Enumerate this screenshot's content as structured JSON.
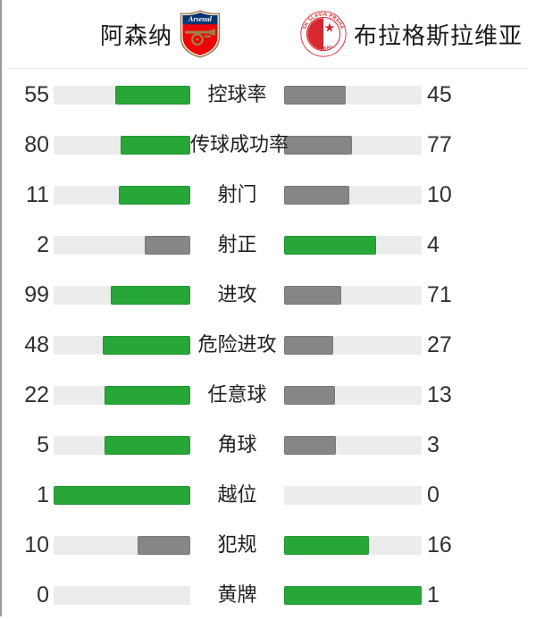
{
  "header": {
    "home_team": "阿森纳",
    "away_team": "布拉格斯拉维亚",
    "home_logo": "arsenal-crest",
    "away_logo": "slavia-prague-crest",
    "home_logo_text": "Arsenal",
    "away_logo_text_top": "SK SLAVIA PRAHA",
    "away_logo_text_bottom": "FOTBAL"
  },
  "stats": [
    {
      "label": "控球率",
      "home": 55,
      "away": 45
    },
    {
      "label": "传球成功率",
      "home": 80,
      "away": 77
    },
    {
      "label": "射门",
      "home": 11,
      "away": 10
    },
    {
      "label": "射正",
      "home": 2,
      "away": 4
    },
    {
      "label": "进攻",
      "home": 99,
      "away": 71
    },
    {
      "label": "危险进攻",
      "home": 48,
      "away": 27
    },
    {
      "label": "任意球",
      "home": 22,
      "away": 13
    },
    {
      "label": "角球",
      "home": 5,
      "away": 3
    },
    {
      "label": "越位",
      "home": 1,
      "away": 0
    },
    {
      "label": "犯规",
      "home": 10,
      "away": 16
    },
    {
      "label": "黄牌",
      "home": 0,
      "away": 1
    }
  ],
  "colors": {
    "leader_bar": "#27a737",
    "trailing_bar": "#868686",
    "bar_track": "#ececec",
    "arsenal_red": "#ef0107",
    "arsenal_navy": "#063672",
    "arsenal_gold": "#9c824a",
    "slavia_red": "#d7282f"
  }
}
